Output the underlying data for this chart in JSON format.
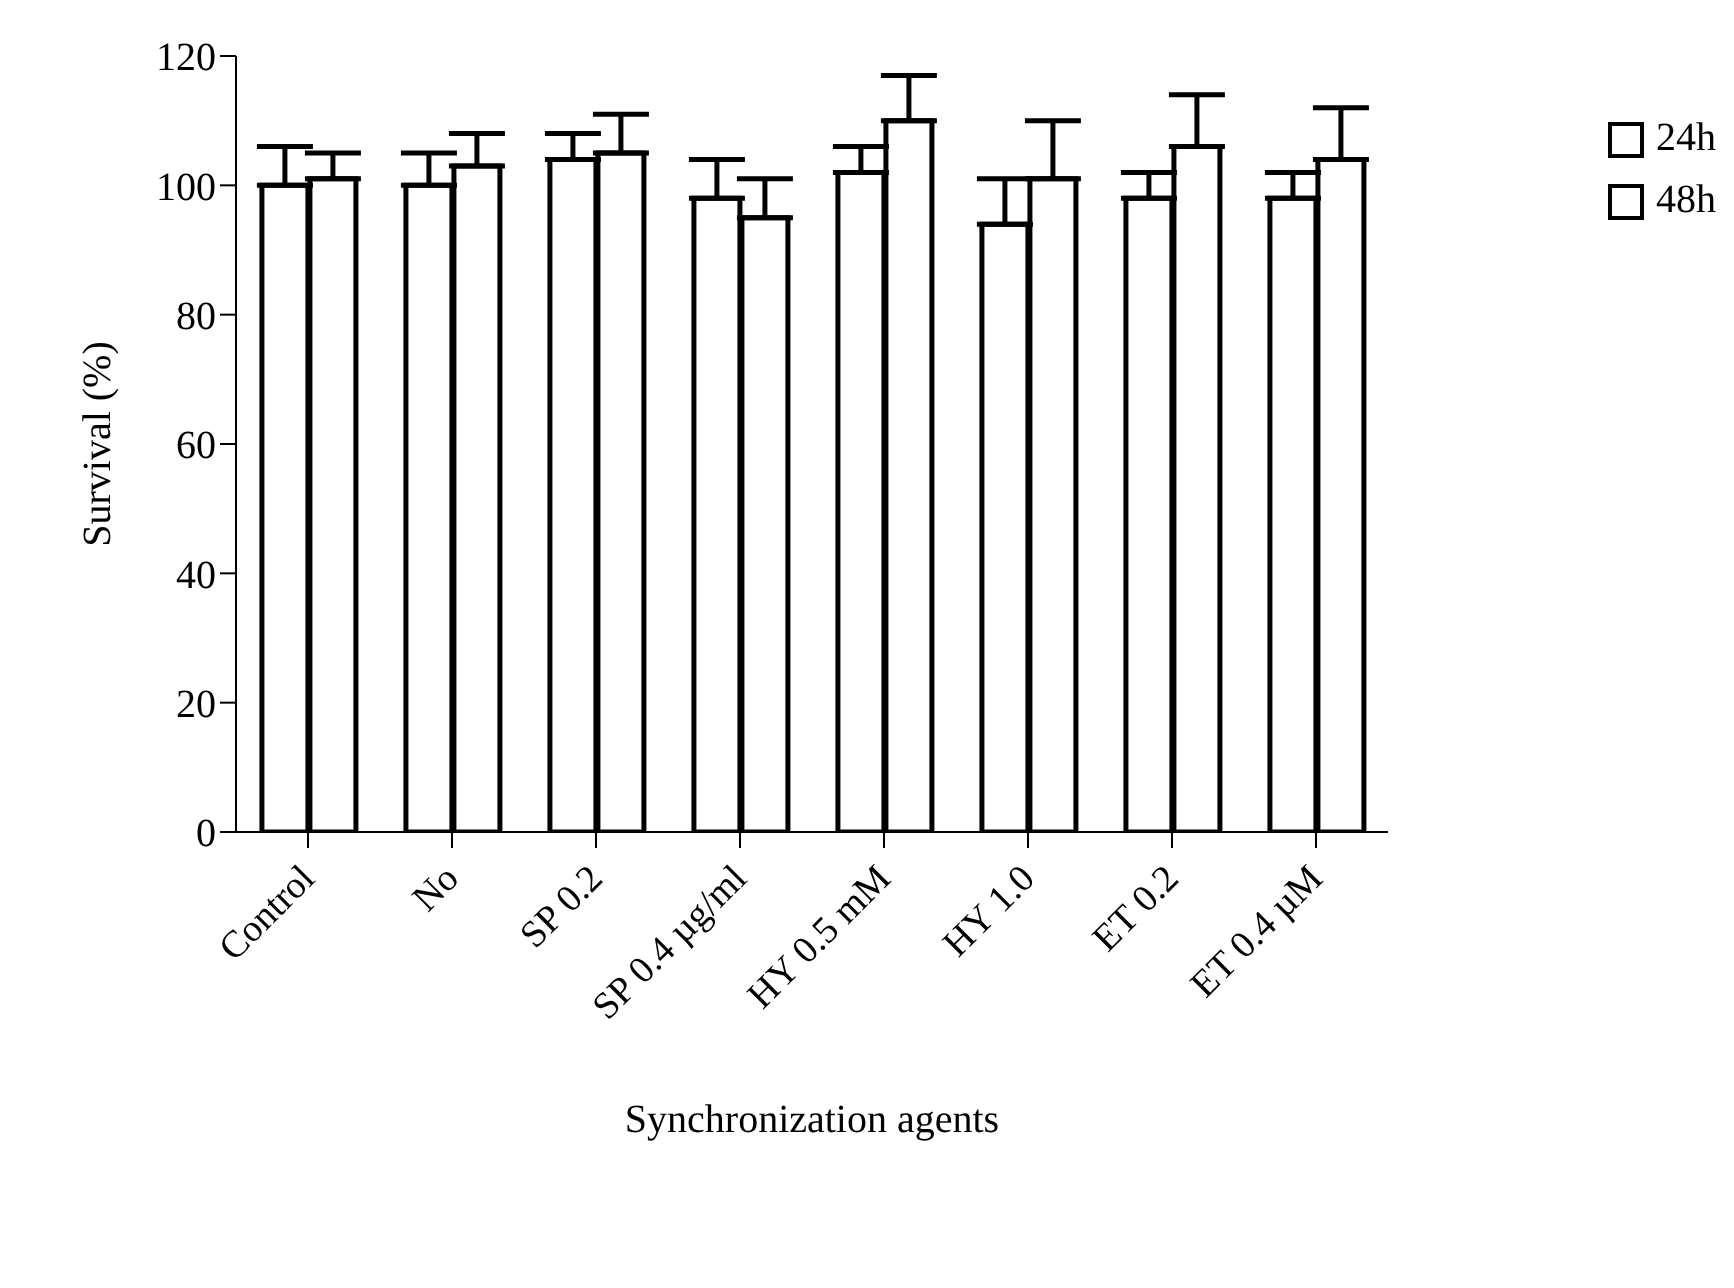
{
  "chart_data": {
    "type": "bar",
    "xlabel": "Synchronization agents",
    "ylabel": "Survival (%)",
    "categories": [
      "Control",
      "No",
      "SP 0.2",
      "SP 0.4 µg/ml",
      "HY 0.5 mM",
      "HY 1.0",
      "ET 0.2",
      "ET 0.4 µM"
    ],
    "series": [
      {
        "name": "24h",
        "color": "#ffffff",
        "values": [
          100,
          100,
          104,
          98,
          102,
          94,
          98,
          98
        ],
        "errors": [
          [
            100,
            106
          ],
          [
            100,
            105
          ],
          [
            104,
            108
          ],
          [
            98,
            104
          ],
          [
            102,
            106
          ],
          [
            94,
            101
          ],
          [
            98,
            102
          ],
          [
            98,
            102
          ]
        ]
      },
      {
        "name": "48h",
        "color": "#ffffff",
        "values": [
          101,
          103,
          105,
          95,
          110,
          101,
          106,
          104
        ],
        "errors": [
          [
            101,
            105
          ],
          [
            103,
            108
          ],
          [
            105,
            111
          ],
          [
            95,
            101
          ],
          [
            110,
            117
          ],
          [
            101,
            110
          ],
          [
            106,
            114
          ],
          [
            104,
            112
          ]
        ]
      }
    ],
    "ylim": [
      0,
      120
    ],
    "yticks": [
      0,
      20,
      40,
      60,
      80,
      100,
      120
    ],
    "grid": false,
    "legend": "right"
  }
}
